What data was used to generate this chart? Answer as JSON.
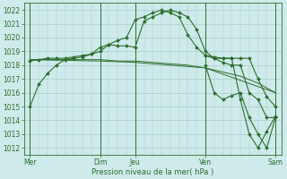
{
  "bg_color": "#ceeaea",
  "grid_color": "#a8cccc",
  "line_color": "#2d6e2d",
  "ylim": [
    1011.5,
    1022.5
  ],
  "yticks": [
    1012,
    1013,
    1014,
    1015,
    1016,
    1017,
    1018,
    1019,
    1020,
    1021,
    1022
  ],
  "xlabel": "Pression niveau de la mer( hPa )",
  "xtick_labels": [
    "Mer",
    "Dim",
    "Jeu",
    "Ven",
    "Sam"
  ],
  "xtick_positions": [
    0,
    48,
    72,
    120,
    168
  ],
  "vline_positions": [
    0,
    48,
    72,
    120,
    168
  ],
  "minor_xtick_interval": 6,
  "series1_x": [
    0,
    6,
    12,
    18,
    24,
    30,
    36,
    42,
    48,
    54,
    60,
    66,
    72,
    78,
    84,
    90,
    96,
    102,
    108,
    114,
    120,
    126,
    132,
    138,
    144,
    150,
    156,
    162,
    168
  ],
  "series1_y": [
    1015.0,
    1016.6,
    1017.4,
    1018.0,
    1018.4,
    1018.5,
    1018.6,
    1018.8,
    1019.3,
    1019.5,
    1019.4,
    1019.4,
    1019.3,
    1021.2,
    1021.5,
    1021.8,
    1022.0,
    1021.8,
    1021.5,
    1020.6,
    1019.0,
    1018.5,
    1018.2,
    1018.0,
    1018.0,
    1016.0,
    1015.5,
    1014.2,
    1014.2
  ],
  "series2_x": [
    0,
    6,
    12,
    18,
    24,
    30,
    36,
    42,
    48,
    54,
    60,
    66,
    72,
    78,
    84,
    90,
    96,
    102,
    108,
    114,
    120,
    126,
    132,
    138,
    144,
    150,
    156,
    162,
    168
  ],
  "series2_y": [
    1018.3,
    1018.4,
    1018.5,
    1018.5,
    1018.5,
    1018.6,
    1018.7,
    1018.8,
    1019.0,
    1019.5,
    1019.8,
    1020.0,
    1021.3,
    1021.5,
    1021.8,
    1022.0,
    1021.8,
    1021.5,
    1020.2,
    1019.3,
    1018.7,
    1018.6,
    1018.5,
    1018.5,
    1018.5,
    1018.5,
    1017.0,
    1015.7,
    1015.0
  ],
  "series3_x": [
    0,
    12,
    24,
    36,
    48,
    60,
    72,
    84,
    96,
    108,
    120,
    132,
    144,
    156,
    168
  ],
  "series3_y": [
    1018.4,
    1018.4,
    1018.4,
    1018.4,
    1018.4,
    1018.3,
    1018.3,
    1018.2,
    1018.1,
    1018.0,
    1017.8,
    1017.5,
    1017.2,
    1016.7,
    1016.0
  ],
  "series4_x": [
    0,
    48,
    72,
    120,
    168
  ],
  "series4_y": [
    1018.4,
    1018.3,
    1018.2,
    1017.8,
    1016.0
  ],
  "series5_x": [
    120,
    126,
    132,
    138,
    144,
    150,
    156,
    162,
    168
  ],
  "series5_y": [
    1018.0,
    1016.0,
    1015.5,
    1015.8,
    1016.0,
    1014.2,
    1013.0,
    1012.0,
    1014.2
  ],
  "series6_x": [
    120,
    126,
    132,
    138,
    144,
    150,
    156,
    162,
    168
  ],
  "series6_y": [
    1018.7,
    1018.5,
    1018.5,
    1018.5,
    1015.5,
    1013.0,
    1012.0,
    1013.2,
    1014.3
  ]
}
